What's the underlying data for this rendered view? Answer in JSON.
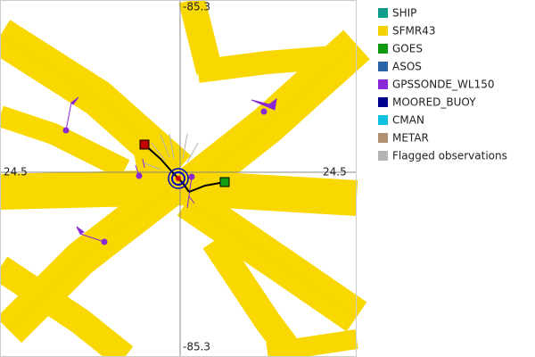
{
  "axis_labels": {
    "top": "-85.3",
    "bottom": "-85.3",
    "left": "24.5",
    "right": "24.5"
  },
  "legend": [
    {
      "name": "SHIP",
      "color": "#109c8c"
    },
    {
      "name": "SFMR43",
      "color": "#f2d200"
    },
    {
      "name": "GOES",
      "color": "#109a10"
    },
    {
      "name": "ASOS",
      "color": "#2a64a6"
    },
    {
      "name": "GPSSONDE_WL150",
      "color": "#8a28d8"
    },
    {
      "name": "MOORED_BUOY",
      "color": "#00008c"
    },
    {
      "name": "CMAN",
      "color": "#10c0e0"
    },
    {
      "name": "METAR",
      "color": "#b09070"
    },
    {
      "name": "Flagged observations",
      "color": "#b4b4b4"
    }
  ]
}
